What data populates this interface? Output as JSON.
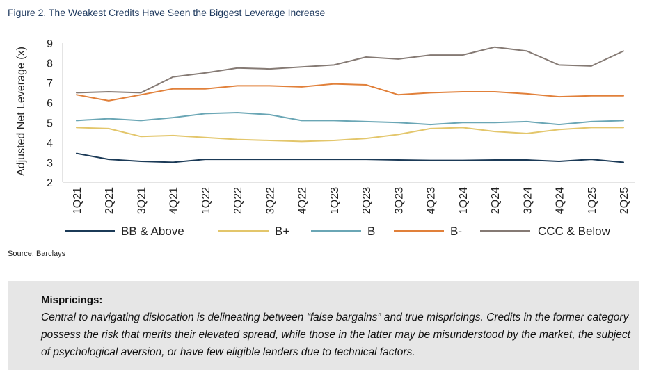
{
  "figure": {
    "title": "Figure 2. The Weakest Credits Have Seen the Biggest Leverage Increase",
    "source": "Source: Barclays"
  },
  "chart_data": {
    "type": "line",
    "ylabel": "Adjusted Net Leverage (x)",
    "xlabel": "",
    "ylim": [
      2,
      9
    ],
    "yticks": [
      2,
      3,
      4,
      5,
      6,
      7,
      8,
      9
    ],
    "grid": false,
    "legend_position": "bottom",
    "categories": [
      "1Q21",
      "2Q21",
      "3Q21",
      "4Q21",
      "1Q22",
      "2Q22",
      "3Q22",
      "4Q22",
      "1Q23",
      "2Q23",
      "3Q23",
      "4Q23",
      "1Q24",
      "2Q24",
      "3Q24",
      "4Q24",
      "1Q25",
      "2Q25"
    ],
    "series": [
      {
        "name": "BB & Above",
        "color": "#1b3a57",
        "values": [
          3.45,
          3.15,
          3.05,
          3.0,
          3.15,
          3.15,
          3.15,
          3.15,
          3.15,
          3.15,
          3.12,
          3.1,
          3.1,
          3.12,
          3.12,
          3.05,
          3.15,
          3.0
        ]
      },
      {
        "name": "B+",
        "color": "#e3c66b",
        "values": [
          4.75,
          4.7,
          4.3,
          4.35,
          4.25,
          4.15,
          4.1,
          4.05,
          4.1,
          4.2,
          4.4,
          4.7,
          4.75,
          4.55,
          4.45,
          4.65,
          4.75,
          4.75
        ]
      },
      {
        "name": "B",
        "color": "#6aa6b5",
        "values": [
          5.1,
          5.2,
          5.1,
          5.25,
          5.45,
          5.5,
          5.4,
          5.1,
          5.1,
          5.05,
          5.0,
          4.9,
          5.0,
          5.0,
          5.05,
          4.9,
          5.05,
          5.1
        ]
      },
      {
        "name": "B-",
        "color": "#e1803a",
        "values": [
          6.4,
          6.1,
          6.4,
          6.7,
          6.7,
          6.85,
          6.85,
          6.8,
          6.95,
          6.9,
          6.4,
          6.5,
          6.55,
          6.55,
          6.45,
          6.3,
          6.35,
          6.35
        ]
      },
      {
        "name": "CCC & Below",
        "color": "#857a74",
        "values": [
          6.5,
          6.55,
          6.5,
          7.3,
          7.5,
          7.75,
          7.7,
          7.8,
          7.9,
          8.3,
          8.2,
          8.4,
          8.4,
          8.8,
          8.6,
          7.9,
          7.85,
          8.6
        ]
      }
    ]
  },
  "callout": {
    "heading": "Mispricings:",
    "body": "Central to navigating dislocation is delineating between “false bargains” and true mispricings. Credits in the former category possess the risk that merits their elevated spread, while those in the latter may be misunderstood by the market, the subject of psychological aversion, or have few eligible lenders due to technical factors."
  }
}
